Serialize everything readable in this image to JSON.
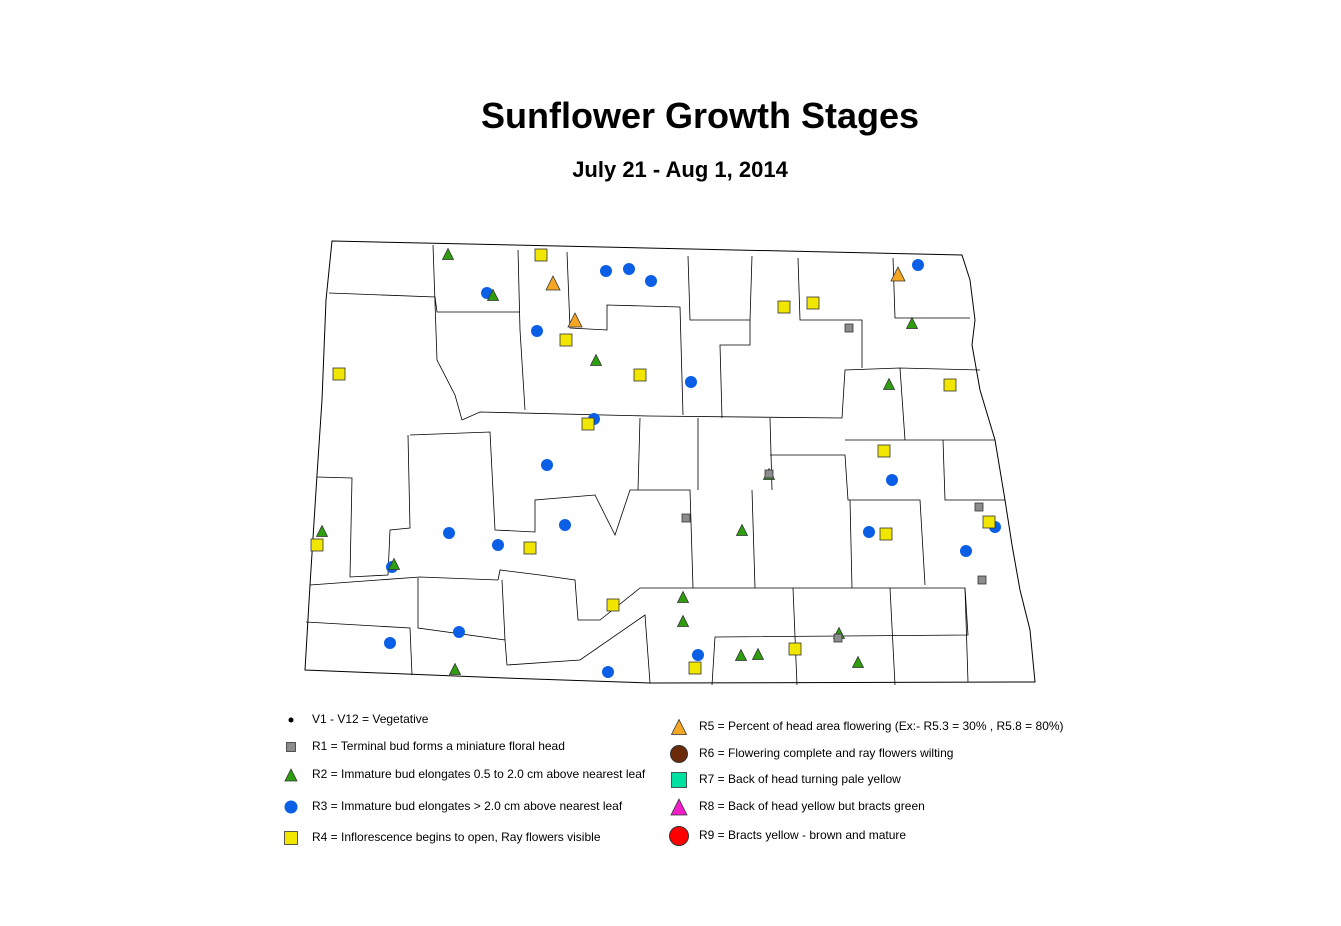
{
  "title": "Sunflower Growth Stages",
  "subtitle": "July 21 - Aug 1, 2014",
  "stages": {
    "V": {
      "label": "V1 - V12 = Vegetative",
      "shape": "dot",
      "color": "#000000"
    },
    "R1": {
      "label": "R1 = Terminal bud forms a miniature floral head",
      "shape": "square",
      "color": "#8c8c8c"
    },
    "R2": {
      "label": "R2 = Immature bud elongates 0.5 to 2.0 cm above nearest leaf",
      "shape": "triangle",
      "color": "#2e9e0e"
    },
    "R3": {
      "label": "R3 = Immature bud elongates > 2.0 cm above nearest leaf",
      "shape": "circle",
      "color": "#0a5fe6"
    },
    "R4": {
      "label": "R4 = Inflorescence begins to open, Ray flowers visible",
      "shape": "square",
      "color": "#f0e600"
    },
    "R5": {
      "label": "R5 = Percent of head area flowering (Ex:- R5.3 = 30% , R5.8 = 80%)",
      "shape": "triangle",
      "color": "#f5a623"
    },
    "R6": {
      "label": "R6 = Flowering complete and ray flowers wilting",
      "shape": "circle",
      "color": "#6b2a0a"
    },
    "R7": {
      "label": "R7 = Back of head turning pale yellow",
      "shape": "square",
      "color": "#00e0a0"
    },
    "R8": {
      "label": "R8 = Back of head yellow but bracts green",
      "shape": "triangle",
      "color": "#f01ec8"
    },
    "R9": {
      "label": "R9 = Bracts yellow - brown and mature",
      "shape": "circle",
      "color": "#ff0000"
    }
  },
  "observation_counts": {
    "R1": 6,
    "R2": 16,
    "R3": 21,
    "R4": 16,
    "R5": 3
  }
}
